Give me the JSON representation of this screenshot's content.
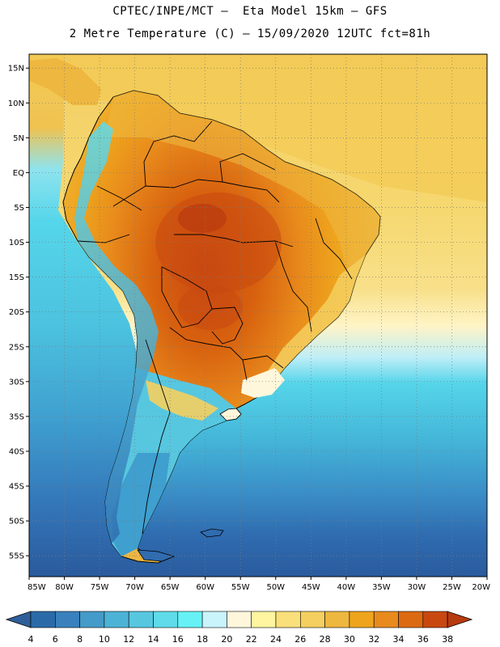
{
  "title": {
    "line1": "CPTEC/INPE/MCT –  Eta Model 15km – GFS",
    "line2": "2 Metre Temperature (C) – 15/09/2020 12UTC fct=81h"
  },
  "map": {
    "lon_range": [
      -85,
      -20
    ],
    "lat_range": [
      -58,
      17
    ],
    "lat_labels": [
      {
        "lat": 15,
        "label": "15N"
      },
      {
        "lat": 10,
        "label": "10N"
      },
      {
        "lat": 5,
        "label": "5N"
      },
      {
        "lat": 0,
        "label": "EQ"
      },
      {
        "lat": -5,
        "label": "5S"
      },
      {
        "lat": -10,
        "label": "10S"
      },
      {
        "lat": -15,
        "label": "15S"
      },
      {
        "lat": -20,
        "label": "20S"
      },
      {
        "lat": -25,
        "label": "25S"
      },
      {
        "lat": -30,
        "label": "30S"
      },
      {
        "lat": -35,
        "label": "35S"
      },
      {
        "lat": -40,
        "label": "40S"
      },
      {
        "lat": -45,
        "label": "45S"
      },
      {
        "lat": -50,
        "label": "50S"
      },
      {
        "lat": -55,
        "label": "55S"
      }
    ],
    "lon_labels": [
      {
        "lon": -85,
        "label": "85W"
      },
      {
        "lon": -80,
        "label": "80W"
      },
      {
        "lon": -75,
        "label": "75W"
      },
      {
        "lon": -70,
        "label": "70W"
      },
      {
        "lon": -65,
        "label": "65W"
      },
      {
        "lon": -60,
        "label": "60W"
      },
      {
        "lon": -55,
        "label": "55W"
      },
      {
        "lon": -50,
        "label": "50W"
      },
      {
        "lon": -45,
        "label": "45W"
      },
      {
        "lon": -40,
        "label": "40W"
      },
      {
        "lon": -35,
        "label": "35W"
      },
      {
        "lon": -30,
        "label": "30W"
      },
      {
        "lon": -25,
        "label": "25W"
      },
      {
        "lon": -20,
        "label": "20W"
      }
    ]
  },
  "colorbar": {
    "labels": [
      "4",
      "6",
      "8",
      "10",
      "12",
      "14",
      "16",
      "18",
      "20",
      "22",
      "24",
      "26",
      "28",
      "30",
      "32",
      "34",
      "36",
      "38"
    ],
    "colors": [
      "#2b6aa8",
      "#3a80bd",
      "#449ac8",
      "#4db3d6",
      "#57c7e0",
      "#5fdbea",
      "#66f2f5",
      "#c9f4fb",
      "#fff7dc",
      "#fff5a0",
      "#f9e07a",
      "#f5cf5f",
      "#eeb73f",
      "#eea41d",
      "#e88a1c",
      "#dc6a12",
      "#c84810"
    ],
    "low_color": "#2f5f9a",
    "high_color": "#b83a10"
  },
  "colors": {
    "ocean_north": "#f3d36a",
    "ocean_north_far": "#f7dc72",
    "ocean_mid": "#fff4c0",
    "ocean_south": "#4ec9e2",
    "ocean_far_south": "#2d62a5"
  }
}
